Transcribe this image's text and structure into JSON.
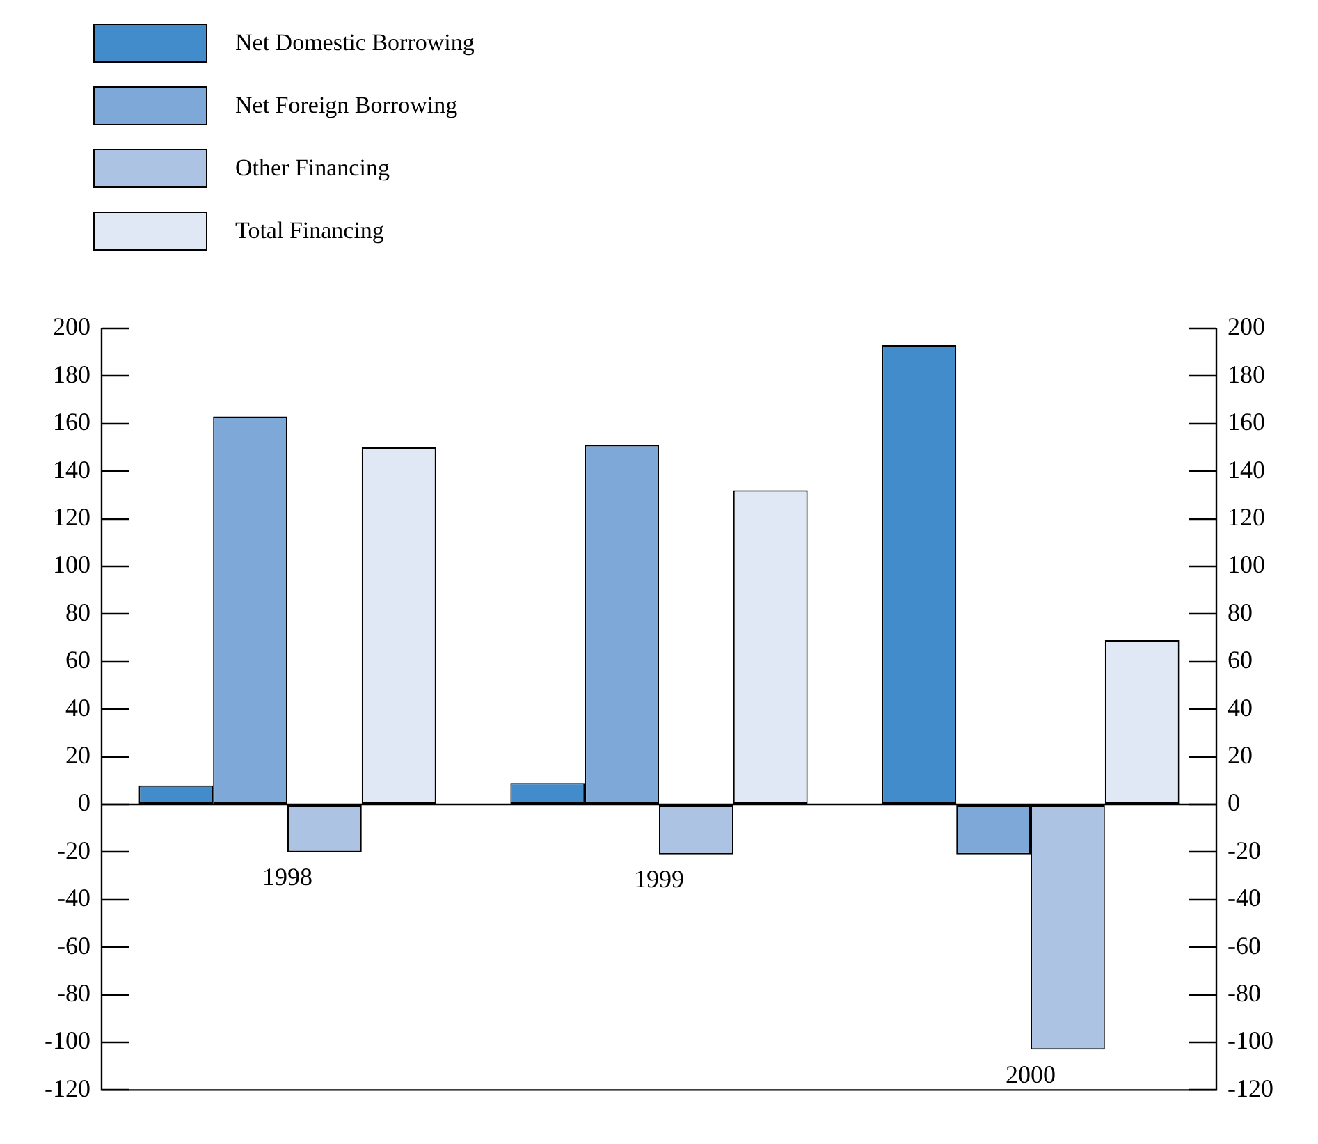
{
  "chart_data": {
    "type": "bar",
    "categories": [
      "1998",
      "1999",
      "2000"
    ],
    "series": [
      {
        "name": "Net Domestic Borrowing",
        "color": "#438ccb",
        "values": [
          8,
          9,
          193
        ]
      },
      {
        "name": "Net Foreign Borrowing",
        "color": "#7ea8d8",
        "values": [
          163,
          151,
          -21
        ]
      },
      {
        "name": "Other Financing",
        "color": "#adc3e4",
        "values": [
          -20,
          -21,
          -103
        ]
      },
      {
        "name": "Total Financing",
        "color": "#e1e8f5",
        "values": [
          150,
          132,
          69
        ]
      }
    ],
    "ylim": [
      -120,
      200
    ],
    "yticks": [
      -120,
      -100,
      -80,
      -60,
      -40,
      -20,
      0,
      20,
      40,
      60,
      80,
      100,
      120,
      140,
      160,
      180,
      200
    ],
    "y2lim": [
      -120,
      200
    ],
    "y2ticks": [
      -120,
      -100,
      -80,
      -60,
      -40,
      -20,
      0,
      20,
      40,
      60,
      80,
      100,
      120,
      140,
      160,
      180,
      200
    ],
    "grid": false,
    "legend": "top left"
  }
}
